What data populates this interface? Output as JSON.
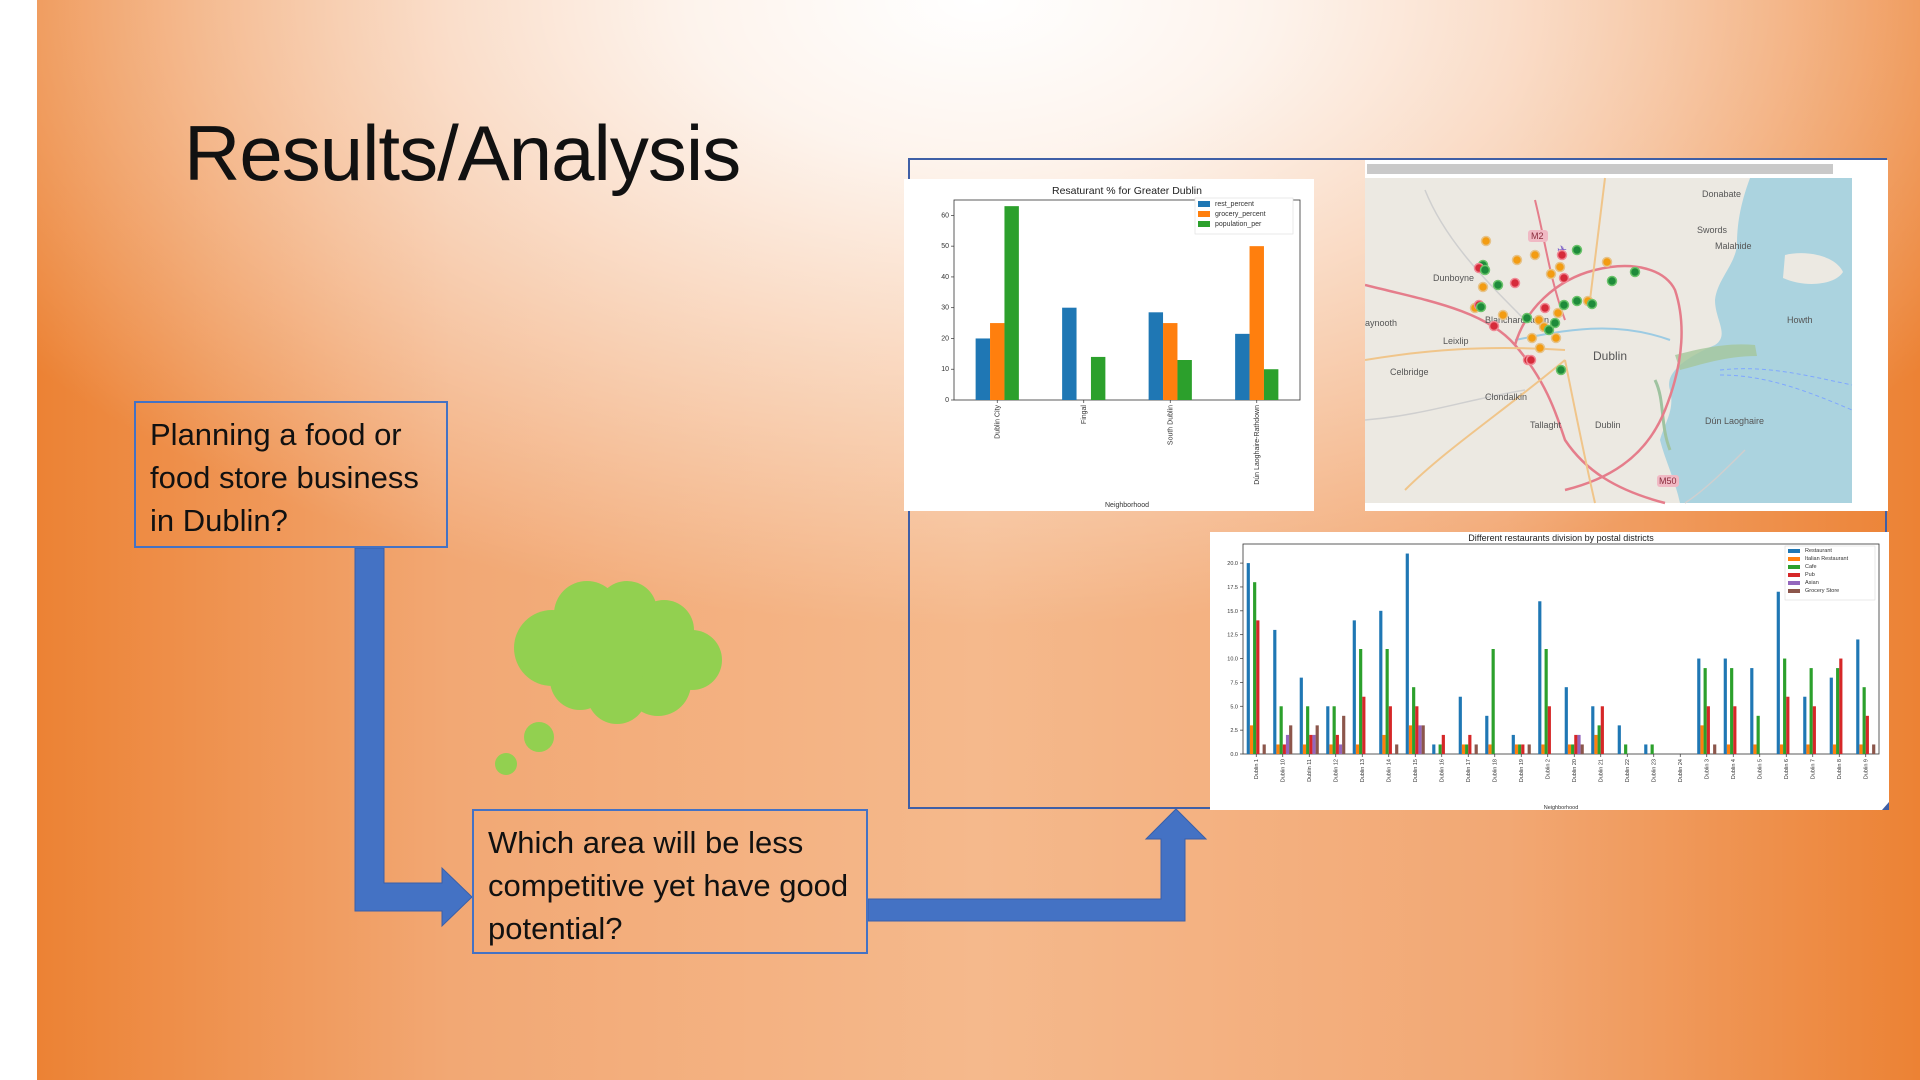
{
  "slide": {
    "title": "Results/Analysis",
    "question1": "Planning a food or food store business in Dublin?",
    "question2": "Which area will be less competitive yet have good potential?"
  },
  "colors": {
    "arrow": "#4472c4",
    "thought_cloud": "#92d050",
    "box_border": "#4472c4"
  },
  "icons": [
    "thought-cloud-icon",
    "airport-icon"
  ],
  "map": {
    "labels": [
      "Donabate",
      "Swords",
      "Malahide",
      "M2",
      "Dunboyne",
      "Blanchardstown",
      "Howth",
      "aynooth",
      "Leixlip",
      "Dublin",
      "Celbridge",
      "Clondalkin",
      "Tallaght",
      "Dublin",
      "Dún Laoghaire",
      "M50"
    ],
    "marker_colors": {
      "orange": "#f39c12",
      "green": "#1e8b3a",
      "red": "#d62b3a"
    }
  },
  "chart_data": [
    {
      "type": "bar",
      "title": "Resaturant % for Greater Dublin",
      "xlabel": "Neighborhood",
      "ylabel": "",
      "categories": [
        "Dublin City",
        "Fingal",
        "South Dublin",
        "Dún Laoghaire-Rathdown"
      ],
      "series": [
        {
          "name": "rest_percent",
          "values": [
            20,
            30,
            28.5,
            21.5
          ],
          "color": "#1f77b4"
        },
        {
          "name": "grocery_percent",
          "values": [
            25,
            0,
            25,
            50
          ],
          "color": "#ff7f0e"
        },
        {
          "name": "population_per",
          "values": [
            63,
            14,
            13,
            10
          ],
          "color": "#2ca02c"
        }
      ],
      "ylim": [
        0,
        65
      ],
      "yticks": [
        0,
        10,
        20,
        30,
        40,
        50,
        60
      ],
      "legend": "top-right",
      "grid": false
    },
    {
      "type": "bar",
      "title": "Different restaurants division by postal districts",
      "xlabel": "Neighborhood",
      "ylabel": "",
      "categories": [
        "Dublin 1",
        "Dublin 10",
        "Dublin 11",
        "Dublin 12",
        "Dublin 13",
        "Dublin 14",
        "Dublin 15",
        "Dublin 16",
        "Dublin 17",
        "Dublin 18",
        "Dublin 19",
        "Dublin 2",
        "Dublin 20",
        "Dublin 21",
        "Dublin 22",
        "Dublin 23",
        "Dublin 24",
        "Dublin 3",
        "Dublin 4",
        "Dublin 5",
        "Dublin 6",
        "Dublin 7",
        "Dublin 8",
        "Dublin 9"
      ],
      "series": [
        {
          "name": "Restaurant",
          "values": [
            20,
            13,
            8,
            5,
            14,
            15,
            21,
            1,
            6,
            4,
            2,
            16,
            7,
            5,
            3,
            1,
            0,
            10,
            10,
            9,
            17,
            6,
            8,
            12
          ],
          "color": "#1f77b4"
        },
        {
          "name": "Italian Restaurant",
          "values": [
            3,
            1,
            1,
            1,
            1,
            2,
            3,
            0,
            1,
            1,
            1,
            1,
            1,
            2,
            0,
            0,
            0,
            3,
            1,
            1,
            1,
            1,
            1,
            1
          ],
          "color": "#ff7f0e"
        },
        {
          "name": "Cafe",
          "values": [
            18,
            5,
            5,
            5,
            11,
            11,
            7,
            1,
            1,
            11,
            1,
            11,
            1,
            3,
            1,
            1,
            0,
            9,
            9,
            4,
            10,
            9,
            9,
            7
          ],
          "color": "#2ca02c"
        },
        {
          "name": "Pub",
          "values": [
            14,
            1,
            2,
            2,
            6,
            5,
            5,
            2,
            2,
            0,
            1,
            5,
            2,
            5,
            0,
            0,
            0,
            5,
            5,
            0,
            6,
            5,
            10,
            4
          ],
          "color": "#d62728"
        },
        {
          "name": "Asian",
          "values": [
            0,
            2,
            2,
            1,
            0,
            0,
            3,
            0,
            0,
            0,
            0,
            0,
            2,
            0,
            0,
            0,
            0,
            0,
            0,
            0,
            0,
            0,
            0,
            0
          ],
          "color": "#9467bd"
        },
        {
          "name": "Grocery Store",
          "values": [
            1,
            3,
            3,
            4,
            0,
            1,
            3,
            0,
            1,
            0,
            1,
            0,
            1,
            0,
            0,
            0,
            0,
            1,
            0,
            0,
            0,
            0,
            0,
            1
          ],
          "color": "#8c564b"
        }
      ],
      "ylim": [
        0,
        22
      ],
      "yticks": [
        0.0,
        2.5,
        5.0,
        7.5,
        10.0,
        12.5,
        15.0,
        17.5,
        20.0
      ],
      "legend": "top-right",
      "grid": false
    }
  ]
}
